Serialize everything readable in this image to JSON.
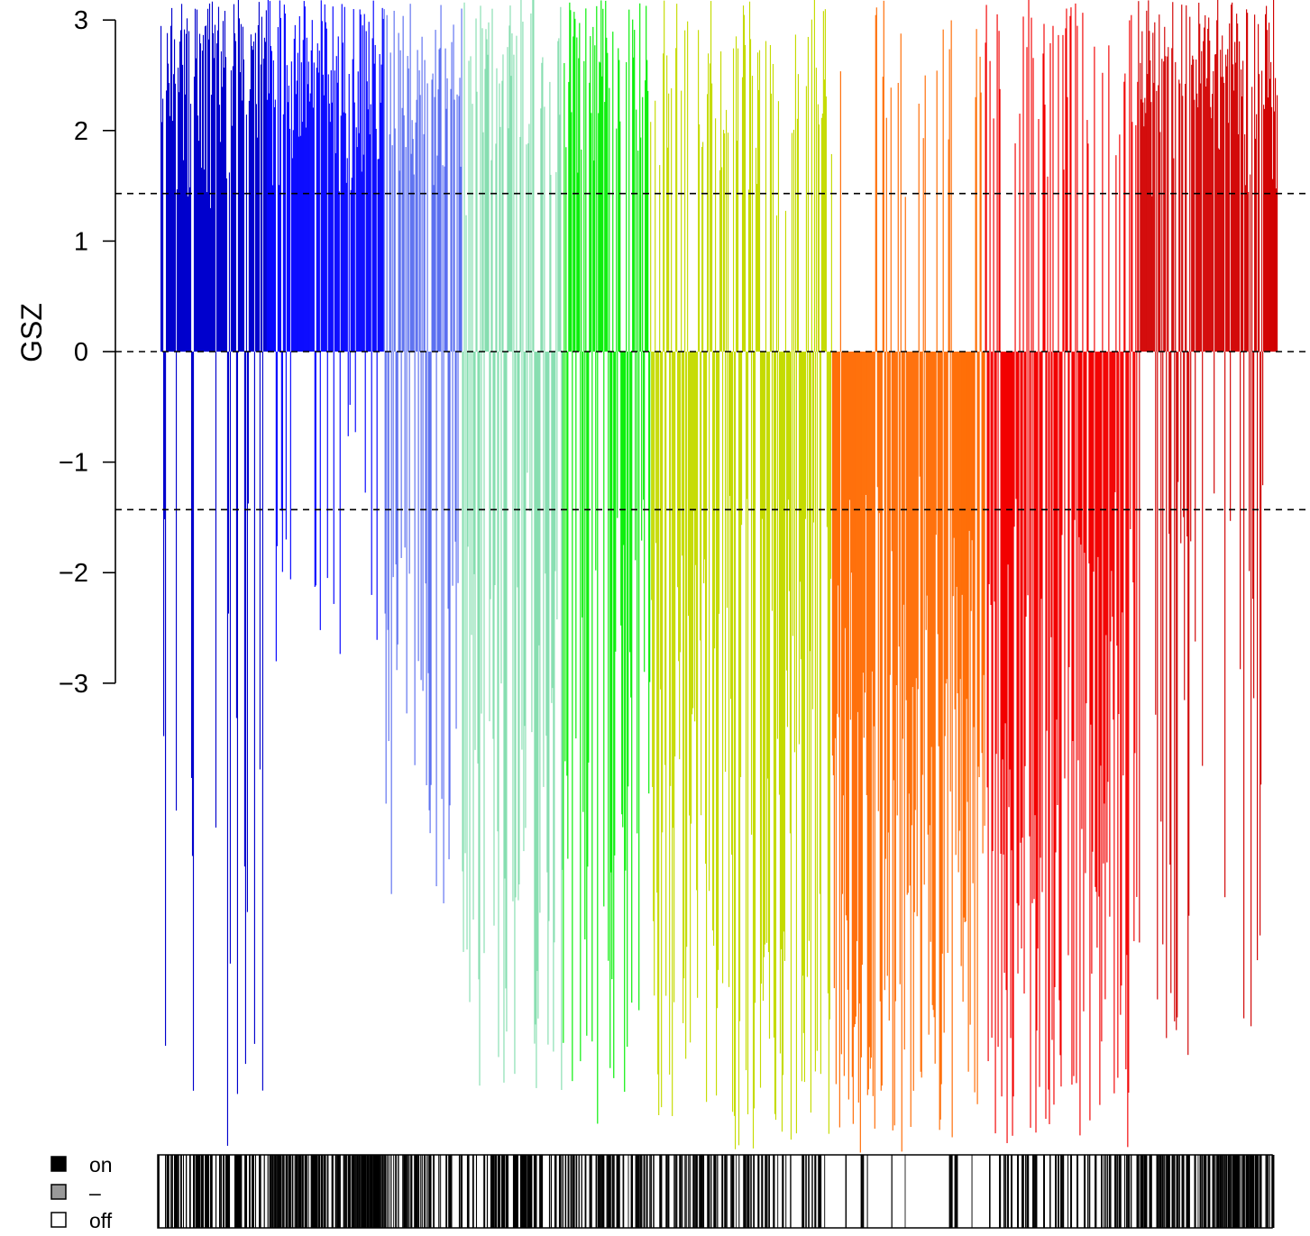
{
  "chart_data": {
    "type": "bar",
    "ylabel": "GSZ",
    "yticks": [
      3,
      2,
      1,
      0,
      -1,
      -2,
      -3
    ],
    "ytick_labels": [
      "3",
      "2",
      "1",
      "0",
      "−1",
      "−2",
      "−3"
    ],
    "view_ylim": [
      -7.25,
      3.2
    ],
    "threshold_lines": [
      1.43,
      0,
      -1.43
    ],
    "bar_count": 1240,
    "groups": [
      {
        "color": "#0000CD",
        "fraction": 0.095,
        "pos_max": 3.2,
        "neg_min": -7.2,
        "pos_rate": 0.82,
        "neg_rate": 0.25
      },
      {
        "color": "#0000FF",
        "fraction": 0.105,
        "pos_max": 3.2,
        "neg_min": -3.0,
        "pos_rate": 0.9,
        "neg_rate": 0.1
      },
      {
        "color": "#5B6FF0",
        "fraction": 0.07,
        "pos_max": 3.2,
        "neg_min": -5.0,
        "pos_rate": 0.7,
        "neg_rate": 0.35
      },
      {
        "color": "#86DEB0",
        "fraction": 0.09,
        "pos_max": 3.2,
        "neg_min": -6.8,
        "pos_rate": 0.5,
        "neg_rate": 0.5
      },
      {
        "color": "#00EE00",
        "fraction": 0.078,
        "pos_max": 3.2,
        "neg_min": -7.0,
        "pos_rate": 0.6,
        "neg_rate": 0.45
      },
      {
        "color": "#C5DB00",
        "fraction": 0.163,
        "pos_max": 3.2,
        "neg_min": -7.25,
        "pos_rate": 0.35,
        "neg_rate": 0.7
      },
      {
        "color": "#FF6A00",
        "fraction": 0.137,
        "pos_max": 3.2,
        "neg_min": -7.25,
        "pos_rate": 0.12,
        "neg_rate": 0.9
      },
      {
        "color": "#F20000",
        "fraction": 0.137,
        "pos_max": 3.2,
        "neg_min": -7.25,
        "pos_rate": 0.35,
        "neg_rate": 0.75
      },
      {
        "color": "#D10000",
        "fraction": 0.125,
        "pos_max": 3.2,
        "neg_min": -6.5,
        "pos_rate": 0.85,
        "neg_rate": 0.3
      }
    ],
    "legend": {
      "placement": "bottom-left",
      "items": [
        {
          "label": "on",
          "color": "#000000"
        },
        {
          "label": "–",
          "color": "#999999"
        },
        {
          "label": "off",
          "color": "#ffffff"
        }
      ]
    },
    "indicator_strip": {
      "on_color": "#000000",
      "segment_on_rates": [
        0.55,
        0.65,
        0.45,
        0.45,
        0.5,
        0.3,
        0.08,
        0.25,
        0.6
      ]
    }
  }
}
